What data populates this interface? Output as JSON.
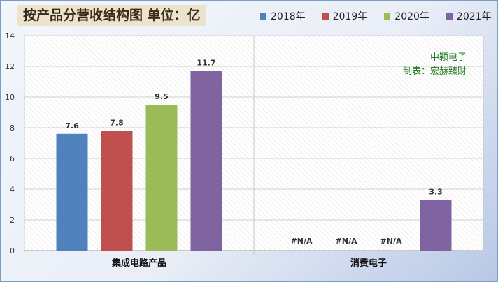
{
  "chart_data": {
    "type": "bar",
    "title": "按产品分营收结构图 单位：亿",
    "categories": [
      "集成电路产品",
      "消费电子"
    ],
    "series": [
      {
        "name": "2018年",
        "color": "#4f81bd",
        "values": [
          7.6,
          null
        ],
        "labels": [
          "7.6",
          "#N/A"
        ]
      },
      {
        "name": "2019年",
        "color": "#c0504d",
        "values": [
          7.8,
          null
        ],
        "labels": [
          "7.8",
          "#N/A"
        ]
      },
      {
        "name": "2020年",
        "color": "#9bbb59",
        "values": [
          9.5,
          null
        ],
        "labels": [
          "9.5",
          "#N/A"
        ]
      },
      {
        "name": "2021年",
        "color": "#8064a2",
        "values": [
          11.7,
          3.3
        ],
        "labels": [
          "11.7",
          "3.3"
        ]
      }
    ],
    "ylim": [
      0,
      14
    ],
    "yticks": [
      0,
      2,
      4,
      6,
      8,
      10,
      12,
      14
    ],
    "grid": true,
    "legend_position": "top-right"
  },
  "annotations": {
    "line1": "中颖电子",
    "line2": "制表：宏赫臻财"
  }
}
